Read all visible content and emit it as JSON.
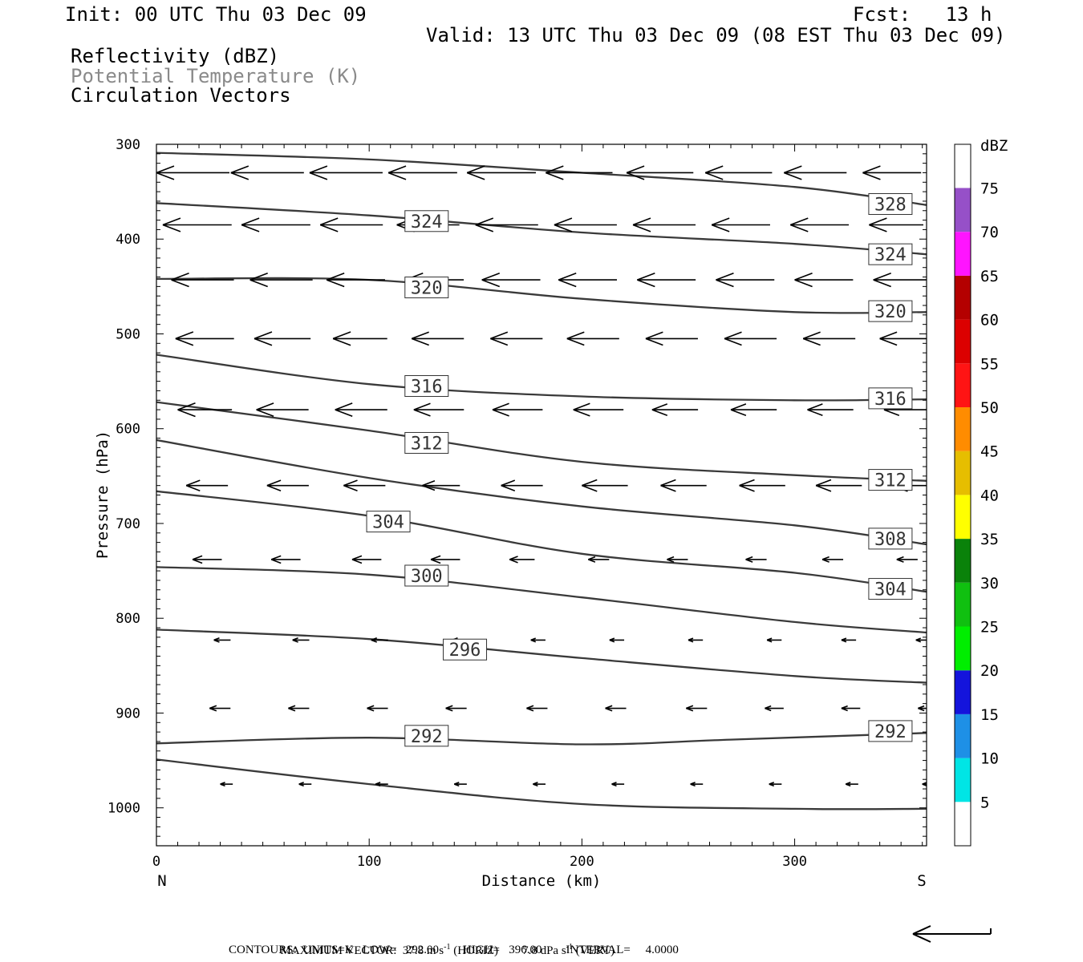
{
  "header": {
    "init": "Init: 00 UTC Thu 03 Dec 09",
    "fcst": "Fcst:   13 h",
    "valid": "Valid: 13 UTC Thu 03 Dec 09 (08 EST Thu 03 Dec 09)",
    "fields": [
      {
        "label": "Reflectivity (dBZ)",
        "color": "#000000"
      },
      {
        "label": "Potential Temperature (K)",
        "color": "#8a8a8a"
      },
      {
        "label": "Circulation Vectors",
        "color": "#000000"
      }
    ]
  },
  "footer": {
    "line1_a": "MAXIMUM VECTOR:  37.8 m s",
    "line1_b": "(HORIZ)",
    "line1_c": "7.8 dPa s",
    "line1_d": "(VERT)",
    "exp": "-1",
    "line2": "CONTOURS:  UNITS=K   LOW=   292.00        HIGH=   396.00        INTERVAL=     4.0000"
  },
  "chart_data": {
    "type": "line",
    "title": "Potential Temperature (K)",
    "xlabel": "Distance (km)",
    "ylabel": "Pressure (hPa)",
    "xlim": [
      0,
      362
    ],
    "ylim": [
      1040,
      300
    ],
    "y_scale": "linear, inverted",
    "x_ticks": [
      "0",
      "100",
      "200",
      "300"
    ],
    "y_ticks": [
      "300",
      "400",
      "500",
      "600",
      "700",
      "800",
      "900",
      "1000"
    ],
    "x_end_labels": {
      "left": "N",
      "right": "S"
    },
    "contours": [
      {
        "name": "328",
        "points": [
          [
            0,
            309
          ],
          [
            100,
            316
          ],
          [
            200,
            330
          ],
          [
            300,
            345
          ],
          [
            362,
            364
          ]
        ],
        "labels": [
          [
            345,
            363
          ]
        ]
      },
      {
        "name": "324",
        "points": [
          [
            0,
            362
          ],
          [
            100,
            375
          ],
          [
            200,
            393
          ],
          [
            300,
            405
          ],
          [
            362,
            416
          ]
        ],
        "labels": [
          [
            127,
            381
          ],
          [
            345,
            416
          ]
        ]
      },
      {
        "name": "320",
        "points": [
          [
            0,
            442
          ],
          [
            100,
            443
          ],
          [
            200,
            463
          ],
          [
            300,
            477
          ],
          [
            362,
            477
          ]
        ],
        "labels": [
          [
            127,
            451
          ],
          [
            345,
            476
          ]
        ]
      },
      {
        "name": "316",
        "points": [
          [
            0,
            522
          ],
          [
            100,
            553
          ],
          [
            200,
            566
          ],
          [
            300,
            570
          ],
          [
            362,
            569
          ]
        ],
        "labels": [
          [
            127,
            555
          ],
          [
            345,
            568
          ]
        ]
      },
      {
        "name": "312",
        "points": [
          [
            0,
            572
          ],
          [
            100,
            602
          ],
          [
            200,
            635
          ],
          [
            300,
            649
          ],
          [
            362,
            655
          ]
        ],
        "labels": [
          [
            127,
            615
          ],
          [
            345,
            654
          ]
        ]
      },
      {
        "name": "308",
        "points": [
          [
            0,
            612
          ],
          [
            100,
            652
          ],
          [
            200,
            682
          ],
          [
            300,
            702
          ],
          [
            362,
            722
          ]
        ],
        "labels": [
          [
            345,
            716
          ]
        ]
      },
      {
        "name": "304",
        "points": [
          [
            0,
            666
          ],
          [
            100,
            692
          ],
          [
            200,
            732
          ],
          [
            300,
            752
          ],
          [
            362,
            772
          ]
        ],
        "labels": [
          [
            109,
            698
          ],
          [
            345,
            769
          ]
        ]
      },
      {
        "name": "300",
        "points": [
          [
            0,
            746
          ],
          [
            100,
            754
          ],
          [
            200,
            778
          ],
          [
            300,
            804
          ],
          [
            362,
            815
          ]
        ],
        "labels": [
          [
            127,
            755
          ]
        ]
      },
      {
        "name": "296",
        "points": [
          [
            0,
            812
          ],
          [
            100,
            822
          ],
          [
            200,
            842
          ],
          [
            300,
            861
          ],
          [
            362,
            868
          ]
        ],
        "labels": [
          [
            145,
            833
          ]
        ]
      },
      {
        "name": "292",
        "points": [
          [
            0,
            932
          ],
          [
            100,
            926
          ],
          [
            200,
            933
          ],
          [
            270,
            928
          ],
          [
            362,
            921
          ]
        ],
        "labels": [
          [
            127,
            924
          ],
          [
            345,
            919
          ]
        ]
      },
      {
        "name": "",
        "points": [
          [
            0,
            949
          ],
          [
            100,
            975
          ],
          [
            200,
            996
          ],
          [
            300,
            1001
          ],
          [
            362,
            1001
          ]
        ],
        "labels": []
      }
    ],
    "vectors": [
      {
        "p": 330,
        "xs": [
          0,
          35,
          72,
          109,
          146,
          183,
          221,
          258,
          295,
          332,
          362
        ],
        "len": [
          35,
          35,
          35,
          33,
          33,
          32,
          32,
          32,
          30,
          28,
          25
        ]
      },
      {
        "p": 385,
        "xs": [
          3,
          40,
          77,
          113,
          150,
          187,
          224,
          261,
          298,
          335,
          362
        ],
        "len": [
          33,
          33,
          30,
          30,
          30,
          30,
          30,
          28,
          28,
          26,
          25
        ]
      },
      {
        "p": 443,
        "xs": [
          7,
          44,
          80,
          117,
          153,
          189,
          226,
          263,
          300,
          337,
          362
        ],
        "len": [
          30,
          30,
          28,
          28,
          28,
          28,
          28,
          28,
          28,
          26,
          25
        ]
      },
      {
        "p": 505,
        "xs": [
          9,
          46,
          83,
          120,
          157,
          193,
          230,
          267,
          304,
          340,
          362
        ],
        "len": [
          28,
          27,
          26,
          25,
          25,
          25,
          25,
          25,
          25,
          25,
          25
        ]
      },
      {
        "p": 580,
        "xs": [
          10,
          47,
          84,
          121,
          158,
          196,
          233,
          270,
          306,
          342,
          362
        ],
        "len": [
          26,
          25,
          25,
          24,
          24,
          24,
          22,
          22,
          22,
          22,
          22
        ]
      },
      {
        "p": 660,
        "xs": [
          14,
          52,
          88,
          125,
          162,
          200,
          237,
          274,
          310,
          346,
          362
        ],
        "len": [
          20,
          20,
          20,
          18,
          20,
          22,
          22,
          22,
          22,
          22,
          22
        ]
      },
      {
        "p": 738,
        "xs": [
          17,
          54,
          92,
          129,
          166,
          203,
          240,
          277,
          313,
          348,
          362
        ],
        "len": [
          14,
          14,
          14,
          14,
          12,
          10,
          10,
          10,
          10,
          10,
          10
        ]
      },
      {
        "p": 823,
        "xs": [
          27,
          64,
          101,
          139,
          176,
          213,
          250,
          287,
          322,
          357,
          362
        ],
        "len": [
          8,
          8,
          8,
          8,
          7,
          7,
          7,
          7,
          7,
          7,
          7
        ]
      },
      {
        "p": 895,
        "xs": [
          25,
          62,
          99,
          136,
          174,
          211,
          249,
          286,
          322,
          358,
          362
        ],
        "len": [
          10,
          10,
          10,
          10,
          10,
          10,
          10,
          9,
          9,
          9,
          9
        ]
      },
      {
        "p": 975,
        "xs": [
          30,
          67,
          103,
          140,
          177,
          214,
          251,
          288,
          324,
          360,
          362
        ],
        "len": [
          6,
          6,
          6,
          6,
          6,
          6,
          6,
          6,
          6,
          6,
          6
        ]
      }
    ],
    "colorbar": {
      "label": "dBZ",
      "ticks": [
        "5",
        "10",
        "15",
        "20",
        "25",
        "30",
        "35",
        "40",
        "45",
        "50",
        "55",
        "60",
        "65",
        "70",
        "75"
      ],
      "colors": [
        "#00e5e5",
        "#1e90e6",
        "#1414dc",
        "#00ee00",
        "#10c010",
        "#0a820a",
        "#ffff00",
        "#e6be00",
        "#ff8c00",
        "#ff1414",
        "#dc0000",
        "#b40000",
        "#ff14ff",
        "#9650c8"
      ]
    },
    "grid": false
  }
}
